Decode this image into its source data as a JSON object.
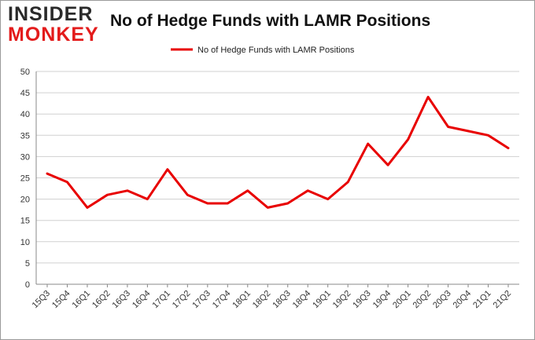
{
  "logo": {
    "line1": "INSIDER",
    "line2": "MONKEY"
  },
  "chart_data": {
    "type": "line",
    "title": "No of Hedge Funds with LAMR Positions",
    "xlabel": "",
    "ylabel": "",
    "ylim": [
      0,
      50
    ],
    "yticks": [
      0,
      5,
      10,
      15,
      20,
      25,
      30,
      35,
      40,
      45,
      50
    ],
    "grid": true,
    "legend_position": "top-center",
    "categories": [
      "15Q3",
      "15Q4",
      "16Q1",
      "16Q2",
      "16Q3",
      "16Q4",
      "17Q1",
      "17Q2",
      "17Q3",
      "17Q4",
      "18Q1",
      "18Q2",
      "18Q3",
      "18Q4",
      "19Q1",
      "19Q2",
      "19Q3",
      "19Q4",
      "20Q1",
      "20Q2",
      "20Q3",
      "20Q4",
      "21Q1",
      "21Q2"
    ],
    "series": [
      {
        "name": "No of Hedge Funds with LAMR Positions",
        "color": "#e80000",
        "values": [
          26,
          24,
          18,
          21,
          22,
          20,
          27,
          21,
          19,
          19,
          22,
          18,
          19,
          22,
          20,
          24,
          33,
          28,
          34,
          44,
          37,
          36,
          35,
          32
        ]
      }
    ]
  }
}
